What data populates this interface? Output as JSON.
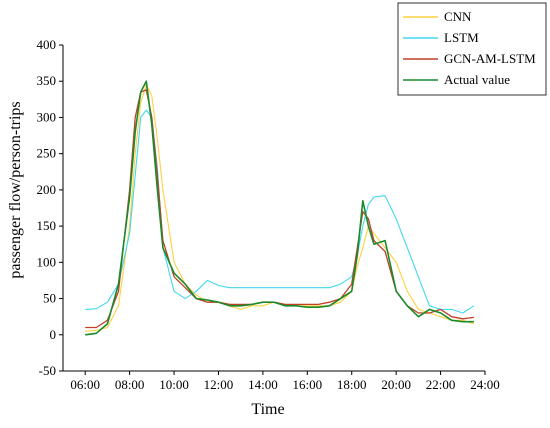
{
  "chart_data": {
    "type": "line",
    "title": "",
    "xlabel": "Time",
    "ylabel": "passenger flow/person-trips",
    "xlim": [
      "05:00",
      "24:00"
    ],
    "ylim": [
      -50,
      400
    ],
    "x_ticks": [
      "06:00",
      "08:00",
      "10:00",
      "12:00",
      "14:00",
      "16:00",
      "18:00",
      "20:00",
      "22:00",
      "24:00"
    ],
    "y_ticks": [
      -50,
      0,
      50,
      100,
      150,
      200,
      250,
      300,
      350,
      400
    ],
    "grid": false,
    "legend_position": "top-right",
    "x": [
      "06:00",
      "06:30",
      "07:00",
      "07:30",
      "08:00",
      "08:15",
      "08:30",
      "08:45",
      "09:00",
      "09:15",
      "09:30",
      "10:00",
      "10:30",
      "11:00",
      "11:30",
      "12:00",
      "12:30",
      "13:00",
      "13:30",
      "14:00",
      "14:30",
      "15:00",
      "15:30",
      "16:00",
      "16:30",
      "17:00",
      "17:30",
      "18:00",
      "18:15",
      "18:30",
      "18:45",
      "19:00",
      "19:30",
      "20:00",
      "20:30",
      "21:00",
      "21:30",
      "22:00",
      "22:30",
      "23:00",
      "23:30"
    ],
    "series": [
      {
        "name": "CNN",
        "color": "#ffd040",
        "values": [
          5,
          6,
          10,
          40,
          150,
          250,
          320,
          345,
          330,
          270,
          200,
          100,
          70,
          55,
          45,
          45,
          40,
          35,
          40,
          40,
          45,
          40,
          40,
          40,
          40,
          40,
          45,
          60,
          95,
          120,
          150,
          140,
          120,
          100,
          60,
          35,
          30,
          25,
          20,
          20,
          15
        ]
      },
      {
        "name": "LSTM",
        "color": "#40d8f0",
        "values": [
          35,
          36,
          45,
          70,
          140,
          220,
          300,
          310,
          300,
          230,
          120,
          60,
          50,
          60,
          75,
          68,
          65,
          65,
          65,
          65,
          65,
          65,
          65,
          65,
          65,
          65,
          70,
          80,
          110,
          150,
          180,
          190,
          192,
          160,
          120,
          80,
          40,
          35,
          35,
          30,
          40
        ]
      },
      {
        "name": "GCN-AM-LSTM",
        "color": "#c0402a",
        "values": [
          10,
          10,
          20,
          60,
          200,
          300,
          335,
          338,
          300,
          220,
          130,
          80,
          65,
          50,
          45,
          45,
          42,
          42,
          42,
          45,
          45,
          42,
          42,
          42,
          42,
          45,
          50,
          70,
          120,
          170,
          160,
          130,
          115,
          60,
          40,
          30,
          30,
          35,
          25,
          22,
          24
        ]
      },
      {
        "name": "Actual value",
        "color": "#1a8a2a",
        "values": [
          0,
          2,
          15,
          70,
          190,
          280,
          335,
          350,
          290,
          200,
          120,
          85,
          70,
          50,
          48,
          45,
          40,
          40,
          42,
          45,
          45,
          40,
          40,
          38,
          38,
          40,
          50,
          60,
          110,
          185,
          150,
          125,
          130,
          60,
          40,
          25,
          35,
          30,
          20,
          18,
          18
        ]
      }
    ]
  }
}
